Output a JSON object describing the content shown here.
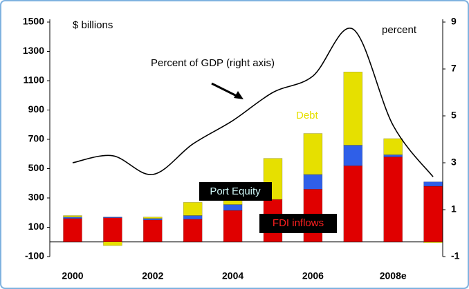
{
  "chart_data": {
    "type": "bar",
    "stacked": true,
    "categories": [
      "2000",
      null,
      "2002",
      null,
      "2004",
      null,
      "2006",
      null,
      "2008e",
      null
    ],
    "series": [
      {
        "name": "FDI inflows",
        "color": "#e00000",
        "values": [
          160,
          165,
          150,
          155,
          215,
          290,
          360,
          520,
          580,
          380
        ]
      },
      {
        "name": "Port Equity",
        "color": "#2f5fe8",
        "values": [
          10,
          5,
          10,
          25,
          40,
          0,
          100,
          140,
          15,
          30
        ]
      },
      {
        "name": "Debt",
        "color": "#e6e000",
        "values": [
          10,
          -25,
          10,
          90,
          30,
          280,
          280,
          500,
          110,
          -5
        ]
      },
      {
        "name": "Percent of GDP (right axis)",
        "type": "line",
        "axis": "y2",
        "color": "#000000",
        "values": [
          3.0,
          3.3,
          2.5,
          3.8,
          4.8,
          6.0,
          6.7,
          8.7,
          4.6,
          2.4
        ]
      }
    ],
    "y_label": "$ billions",
    "y2_label": "percent",
    "ylim": [
      -100,
      1500
    ],
    "yticks": [
      -100,
      100,
      300,
      500,
      700,
      900,
      1100,
      1300,
      1500
    ],
    "y2lim": [
      -1,
      9
    ],
    "y2ticks": [
      -1,
      1,
      3,
      5,
      7,
      9
    ]
  }
}
